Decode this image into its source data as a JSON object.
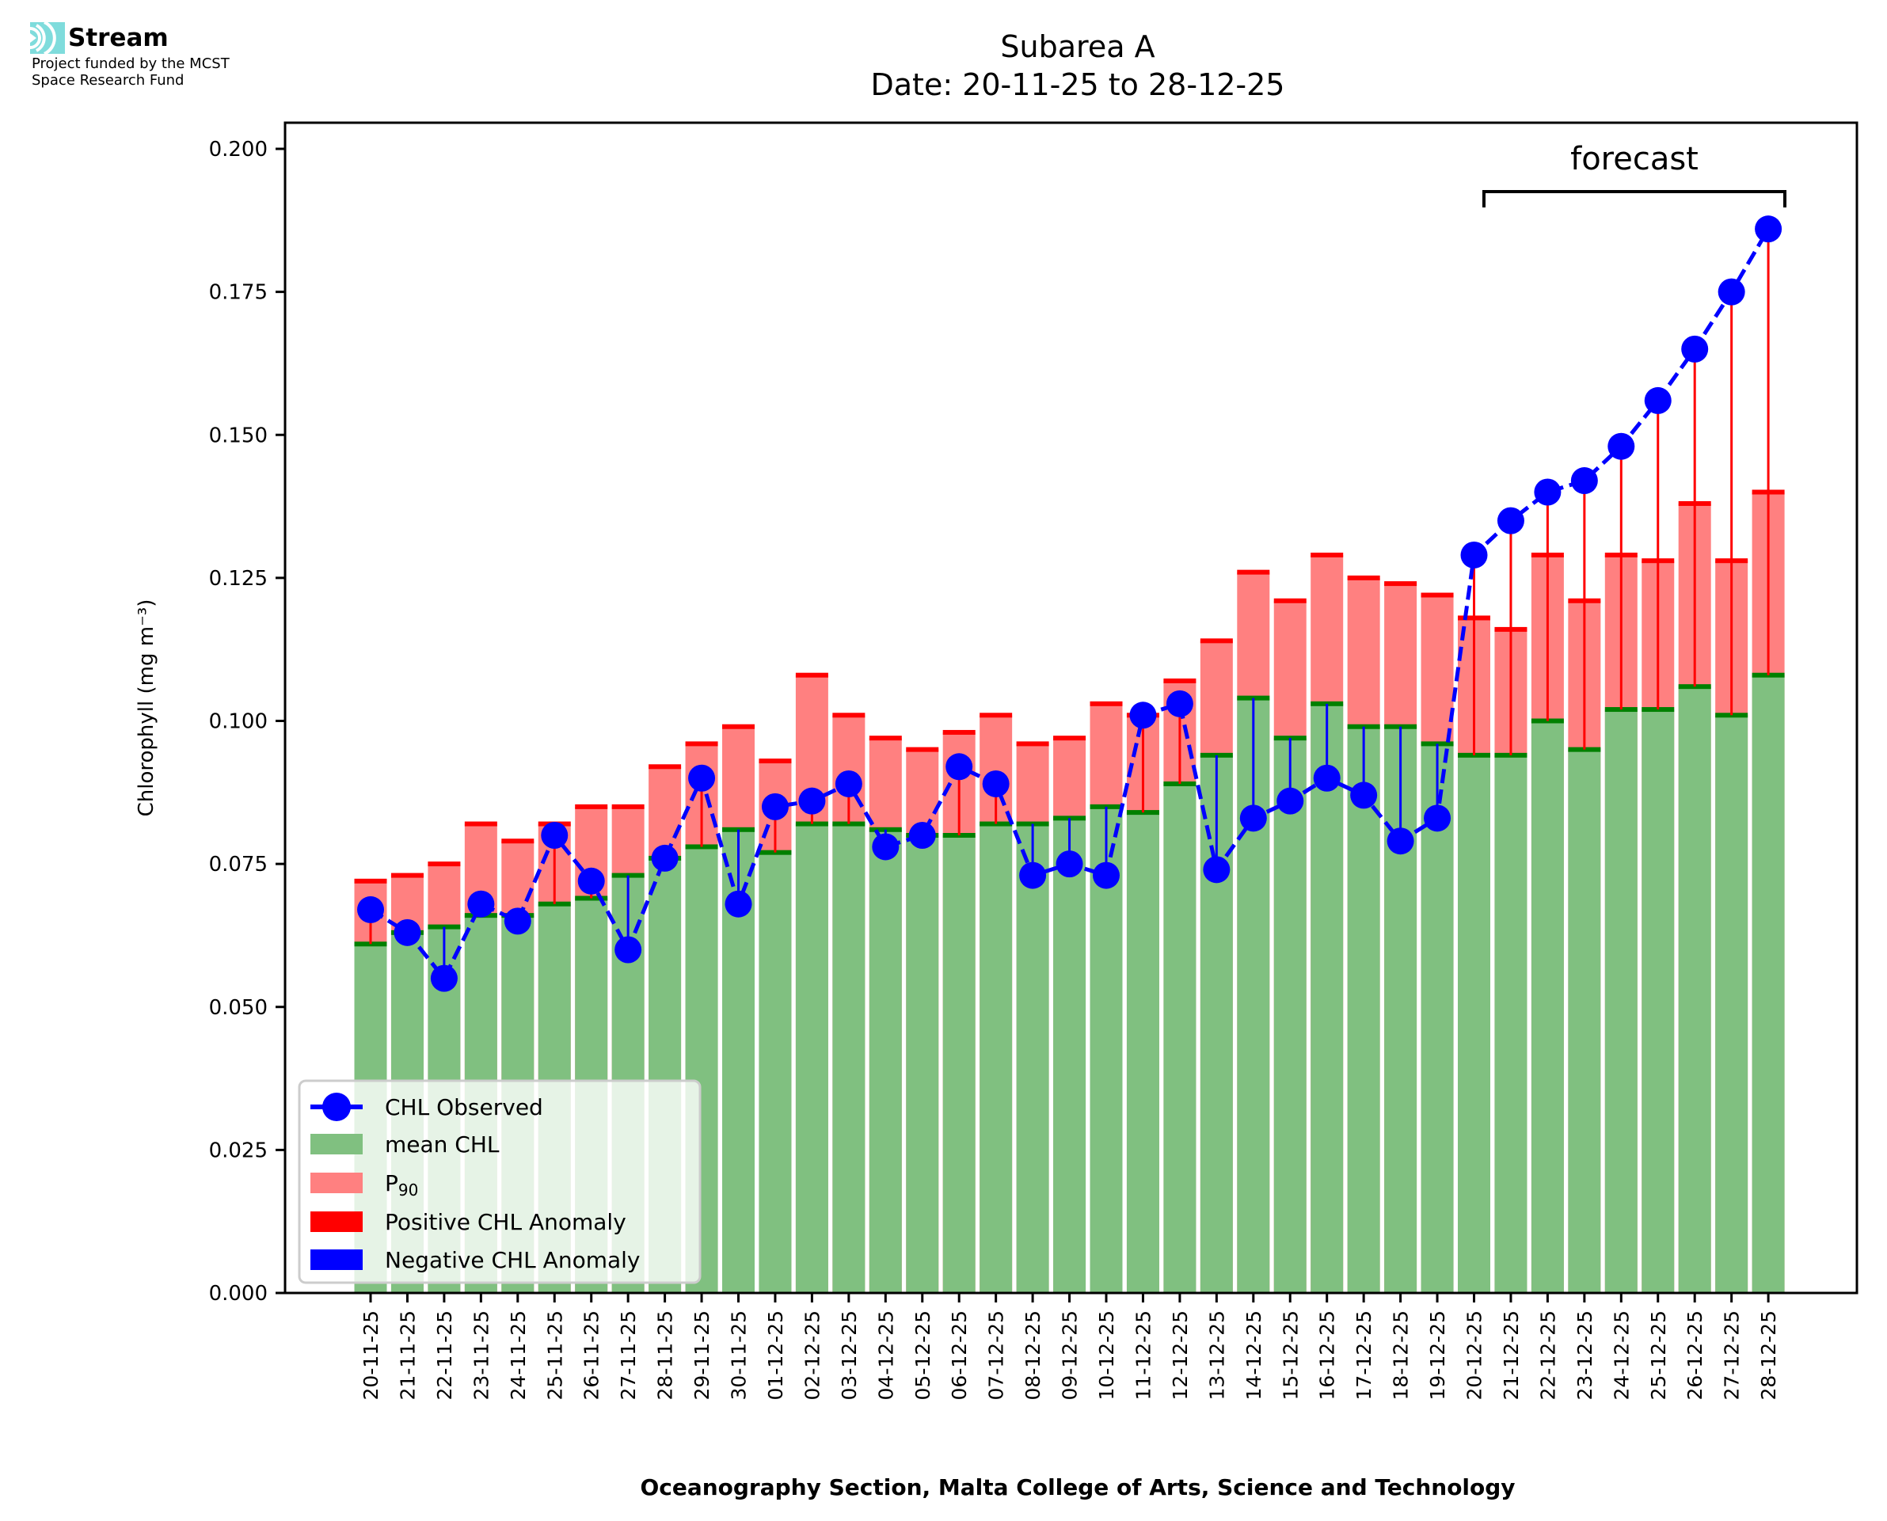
{
  "logo": {
    "name": "Stream",
    "line1": "Project funded by the MCST",
    "line2": "Space Research Fund",
    "accent": "#7fdcdc"
  },
  "chart_data": {
    "type": "bar",
    "title": "Subarea A",
    "subtitle": "Date: 20-11-25 to 28-12-25",
    "xlabel": "Oceanography Section, Malta College of Arts, Science and Technology",
    "ylabel": "Chlorophyll (mg m⁻³)",
    "ylim": [
      0,
      0.205
    ],
    "yticks": [
      "0.000",
      "0.025",
      "0.050",
      "0.075",
      "0.100",
      "0.125",
      "0.150",
      "0.175",
      "0.200"
    ],
    "grid": false,
    "legend_position": "lower-left",
    "annotation": "forecast",
    "forecast_range": [
      "20-12-25",
      "28-12-25"
    ],
    "colors": {
      "mean": "#80c080",
      "mean_edge": "#008000",
      "p90": "#ff8080",
      "p90_edge": "#ff0000",
      "observed": "#0000ff",
      "positive": "#ff0000",
      "negative": "#0000ff"
    },
    "legend": [
      "CHL Observed",
      "mean CHL",
      "P90",
      "Positive CHL Anomaly",
      "Negative CHL Anomaly"
    ],
    "categories": [
      "20-11-25",
      "21-11-25",
      "22-11-25",
      "23-11-25",
      "24-11-25",
      "25-11-25",
      "26-11-25",
      "27-11-25",
      "28-11-25",
      "29-11-25",
      "30-11-25",
      "01-12-25",
      "02-12-25",
      "03-12-25",
      "04-12-25",
      "05-12-25",
      "06-12-25",
      "07-12-25",
      "08-12-25",
      "09-12-25",
      "10-12-25",
      "11-12-25",
      "12-12-25",
      "13-12-25",
      "14-12-25",
      "15-12-25",
      "16-12-25",
      "17-12-25",
      "18-12-25",
      "19-12-25",
      "20-12-25",
      "21-12-25",
      "22-12-25",
      "23-12-25",
      "24-12-25",
      "25-12-25",
      "26-12-25",
      "27-12-25",
      "28-12-25"
    ],
    "series": [
      {
        "name": "mean CHL",
        "values": [
          0.061,
          0.063,
          0.064,
          0.066,
          0.066,
          0.068,
          0.069,
          0.073,
          0.076,
          0.078,
          0.081,
          0.077,
          0.082,
          0.082,
          0.081,
          0.08,
          0.08,
          0.082,
          0.082,
          0.083,
          0.085,
          0.084,
          0.089,
          0.094,
          0.104,
          0.097,
          0.103,
          0.099,
          0.099,
          0.096,
          0.094,
          0.094,
          0.1,
          0.095,
          0.102,
          0.102,
          0.106,
          0.101,
          0.108
        ]
      },
      {
        "name": "P90",
        "values": [
          0.072,
          0.073,
          0.075,
          0.082,
          0.079,
          0.082,
          0.085,
          0.085,
          0.092,
          0.096,
          0.099,
          0.093,
          0.108,
          0.101,
          0.097,
          0.095,
          0.098,
          0.101,
          0.096,
          0.097,
          0.103,
          0.101,
          0.107,
          0.114,
          0.126,
          0.121,
          0.129,
          0.125,
          0.124,
          0.122,
          0.118,
          0.116,
          0.129,
          0.121,
          0.129,
          0.128,
          0.138,
          0.128,
          0.14
        ]
      },
      {
        "name": "CHL Observed",
        "values": [
          0.067,
          0.063,
          0.055,
          0.068,
          0.065,
          0.08,
          0.072,
          0.06,
          0.076,
          0.09,
          0.068,
          0.085,
          0.086,
          0.089,
          0.078,
          0.08,
          0.092,
          0.089,
          0.073,
          0.075,
          0.073,
          0.101,
          0.103,
          0.074,
          0.083,
          0.086,
          0.09,
          0.087,
          0.079,
          0.083,
          0.129,
          0.135,
          0.14,
          0.142,
          0.148,
          0.156,
          0.165,
          0.175,
          0.186
        ]
      }
    ]
  }
}
